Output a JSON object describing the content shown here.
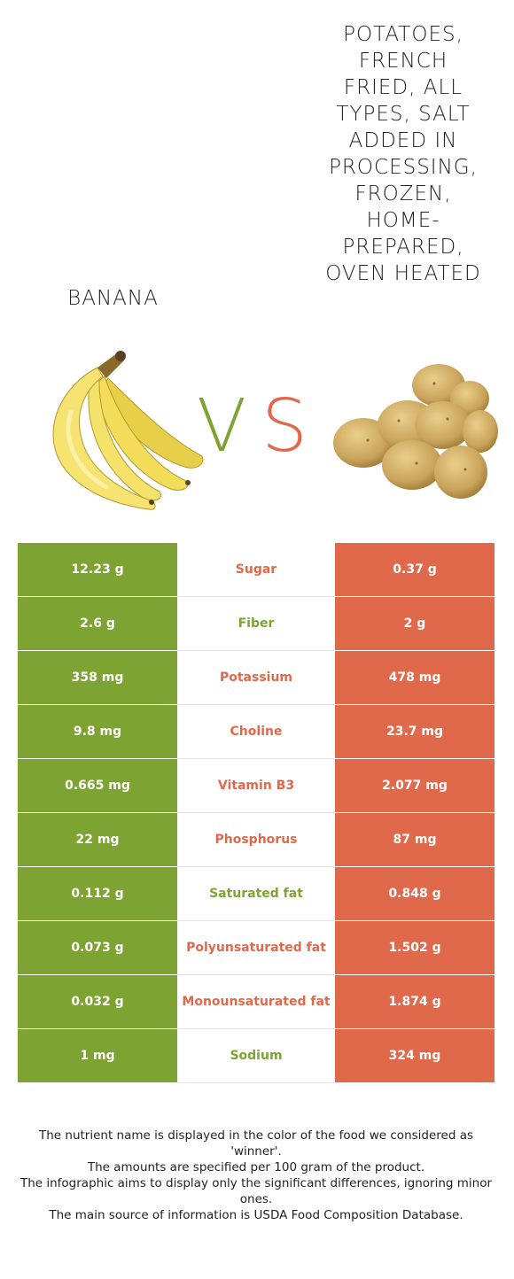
{
  "left_food": {
    "title": "Banana",
    "image_icon": "banana-image"
  },
  "right_food": {
    "title": "Potatoes, french fried, all types, salt added in processing, frozen, home-prepared, oven heated",
    "image_icon": "potato-image"
  },
  "vs": {
    "v": "V",
    "s": "S"
  },
  "colors": {
    "left": "#7da332",
    "right": "#e0694b"
  },
  "rows": [
    {
      "left": "12.23 g",
      "name": "Sugar",
      "right": "0.37 g",
      "winner": "right"
    },
    {
      "left": "2.6 g",
      "name": "Fiber",
      "right": "2 g",
      "winner": "left"
    },
    {
      "left": "358 mg",
      "name": "Potassium",
      "right": "478 mg",
      "winner": "right"
    },
    {
      "left": "9.8 mg",
      "name": "Choline",
      "right": "23.7 mg",
      "winner": "right"
    },
    {
      "left": "0.665 mg",
      "name": "Vitamin B3",
      "right": "2.077 mg",
      "winner": "right"
    },
    {
      "left": "22 mg",
      "name": "Phosphorus",
      "right": "87 mg",
      "winner": "right"
    },
    {
      "left": "0.112 g",
      "name": "Saturated fat",
      "right": "0.848 g",
      "winner": "left"
    },
    {
      "left": "0.073 g",
      "name": "Polyunsaturated fat",
      "right": "1.502 g",
      "winner": "right"
    },
    {
      "left": "0.032 g",
      "name": "Monounsaturated fat",
      "right": "1.874 g",
      "winner": "right"
    },
    {
      "left": "1 mg",
      "name": "Sodium",
      "right": "324 mg",
      "winner": "left"
    }
  ],
  "footer": {
    "line1": "The nutrient name is displayed in the color of the food we considered as 'winner'.",
    "line2": "The amounts are specified per 100 gram of the product.",
    "line3": "The infographic aims to display only the significant differences, ignoring minor ones.",
    "line4": "The main source of information is USDA Food Composition Database."
  }
}
